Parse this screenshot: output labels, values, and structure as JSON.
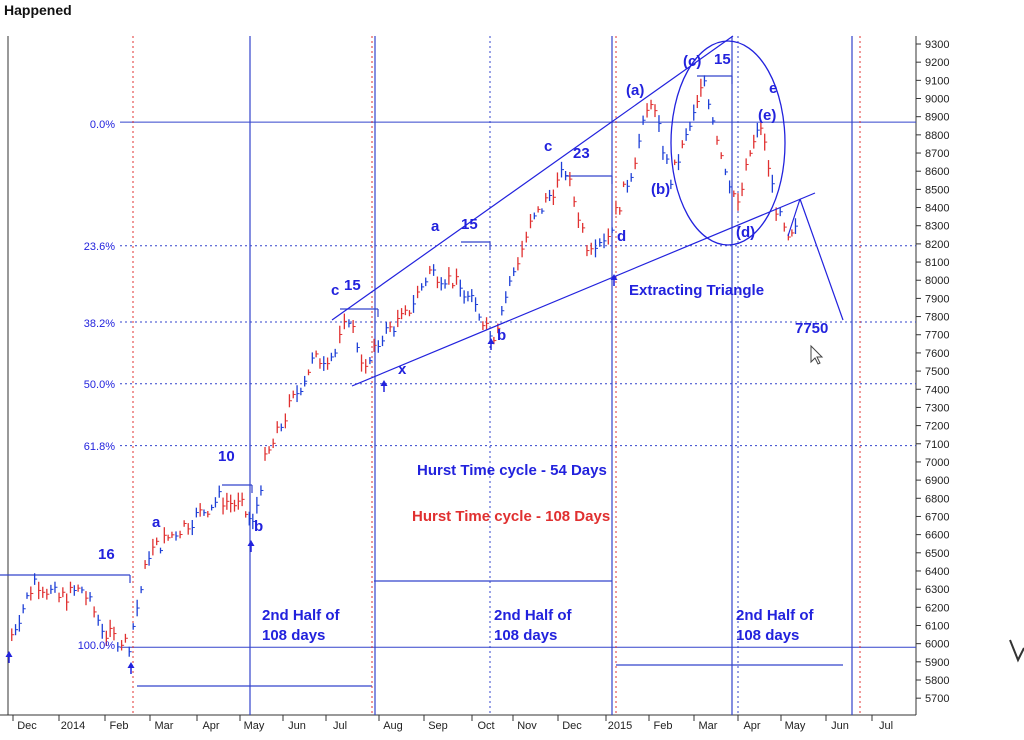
{
  "page_title": "Happened",
  "chart_data": {
    "type": "line",
    "ylim": [
      5650,
      9350
    ],
    "y_ticks": [
      5700,
      5800,
      5900,
      6000,
      6100,
      6200,
      6300,
      6400,
      6500,
      6600,
      6700,
      6800,
      6900,
      7000,
      7100,
      7200,
      7300,
      7400,
      7500,
      7600,
      7700,
      7800,
      7900,
      8000,
      8100,
      8200,
      8300,
      8400,
      8500,
      8600,
      8700,
      8800,
      8900,
      9000,
      9100,
      9200,
      9300
    ],
    "x_labels": [
      "Dec",
      "2014",
      "Feb",
      "Mar",
      "Apr",
      "May",
      "Jun",
      "Jul",
      "Aug",
      "Sep",
      "Oct",
      "Nov",
      "Dec",
      "2015",
      "Feb",
      "Mar",
      "Apr",
      "May",
      "Jun",
      "Jul"
    ],
    "price_series": {
      "x": [
        "2013-12-05",
        "2013-12-20",
        "2014-01-05",
        "2014-01-20",
        "2014-02-05",
        "2014-02-20",
        "2014-03-05",
        "2014-03-20",
        "2014-04-05",
        "2014-04-20",
        "2014-05-05",
        "2014-05-12",
        "2014-05-20",
        "2014-06-05",
        "2014-06-20",
        "2014-07-05",
        "2014-07-14",
        "2014-07-25",
        "2014-08-05",
        "2014-08-20",
        "2014-09-05",
        "2014-09-20",
        "2014-10-05",
        "2014-10-17",
        "2014-10-30",
        "2014-11-10",
        "2014-11-25",
        "2014-12-03",
        "2014-12-17",
        "2014-12-31",
        "2015-01-15",
        "2015-01-28",
        "2015-02-10",
        "2015-02-25",
        "2015-03-04",
        "2015-03-15",
        "2015-03-26",
        "2015-04-03",
        "2015-04-10",
        "2015-04-20",
        "2015-04-28",
        "2015-05-05"
      ],
      "y": [
        6050,
        6350,
        6250,
        6300,
        6050,
        6000,
        6500,
        6600,
        6700,
        6800,
        6750,
        6650,
        7000,
        7300,
        7550,
        7600,
        7800,
        7500,
        7700,
        7800,
        8050,
        8000,
        7850,
        7700,
        8050,
        8300,
        8500,
        8600,
        8200,
        8250,
        8600,
        9000,
        8550,
        8900,
        9100,
        8700,
        8400,
        8700,
        8850,
        8400,
        8200,
        8300
      ]
    },
    "fib_levels": [
      {
        "label": "0.0%",
        "value": 8870
      },
      {
        "label": "23.6%",
        "value": 8190
      },
      {
        "label": "38.2%",
        "value": 7770
      },
      {
        "label": "50.0%",
        "value": 7430
      },
      {
        "label": "61.8%",
        "value": 7090
      },
      {
        "label": "100.0%",
        "value": 5980
      }
    ],
    "annotations": {
      "num_16": "16",
      "num_10": "10",
      "num_15a": "15",
      "num_15b": "15",
      "num_23": "23",
      "num_15c": "15",
      "wave_a1": "a",
      "wave_b1": "b",
      "wave_c1": "c",
      "wave_x": "x",
      "wave_a2": "a",
      "wave_b2": "b",
      "wave_c2": "c",
      "wave_d": "d",
      "wave_A": "(a)",
      "wave_B": "(b)",
      "wave_C": "(c)",
      "wave_D": "(d)",
      "wave_E": "(e)",
      "wave_e": "e",
      "target": "7750",
      "triangle": "Extracting Triangle",
      "hurst54": "Hurst Time cycle - 54 Days",
      "hurst108": "Hurst Time cycle - 108 Days",
      "half1_line1": "2nd Half of",
      "half1_line2": "108 days",
      "half2_line1": "2nd Half of",
      "half2_line2": "108 days",
      "half3_line1": "2nd Half of",
      "half3_line2": "108 days"
    },
    "colors": {
      "annotation": "#2222dd",
      "cycle108": "#e03030",
      "up_bar": "#1d3fd6",
      "down_bar": "#e03030",
      "grid": "#3344cc"
    },
    "grid": false
  }
}
